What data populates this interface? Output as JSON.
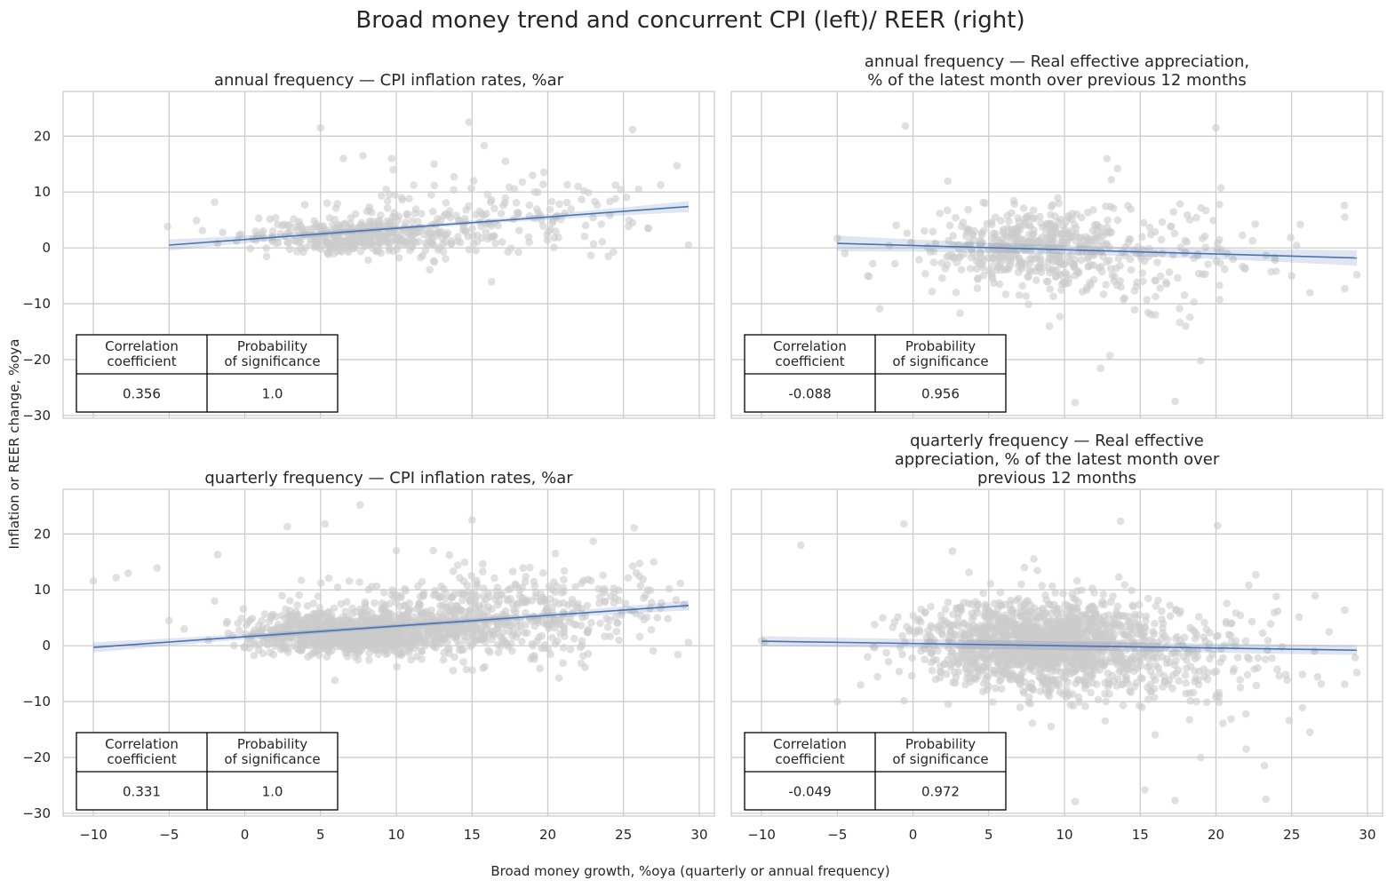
{
  "figure": {
    "title": "Broad money trend and concurrent CPI (left)/ REER (right)",
    "xlabel": "Broad money growth, %oya (quarterly or annual frequency)",
    "ylabel": "Inflation or REER change, %oya"
  },
  "chart_data": [
    {
      "type": "scatter",
      "title_lines": [
        "annual frequency — CPI inflation rates, %ar"
      ],
      "xlim": [
        -12,
        31
      ],
      "ylim": [
        -30.5,
        28
      ],
      "xticks": [
        -10,
        -5,
        0,
        5,
        10,
        15,
        20,
        25,
        30
      ],
      "yticks": [
        -30,
        -20,
        -10,
        0,
        10,
        20
      ],
      "grid": true,
      "x_tick_labels_shown": false,
      "regression": {
        "x": [
          -5,
          29.3
        ],
        "y": [
          0.5,
          7.4
        ],
        "band_width": [
          0.35,
          1.0
        ]
      },
      "scatter_color": "#cccccc",
      "line_color": "#4c72b0",
      "table_position": "lower-left",
      "table": {
        "headers": [
          [
            "Correlation",
            "coefficient"
          ],
          [
            "Probability",
            "of significance"
          ]
        ],
        "values": [
          "0.356",
          "1.0"
        ]
      },
      "point_clusters": [
        {
          "x_mean": 7,
          "x_sd": 3.2,
          "y_mean": 2.2,
          "y_sd": 1.6,
          "n": 340
        },
        {
          "x_mean": 13,
          "x_sd": 4.5,
          "y_mean": 4.5,
          "y_sd": 3.2,
          "n": 170
        },
        {
          "x_mean": 21,
          "x_sd": 4,
          "y_mean": 6,
          "y_sd": 4,
          "n": 50
        }
      ],
      "points": [
        [
          5.0,
          21.5
        ],
        [
          7.8,
          16.5
        ],
        [
          9.7,
          16
        ],
        [
          14.8,
          22.5
        ],
        [
          15.8,
          18.3
        ],
        [
          9.8,
          14
        ],
        [
          12.5,
          15
        ],
        [
          25.6,
          21.2
        ],
        [
          17.2,
          15.5
        ],
        [
          6.5,
          16
        ],
        [
          19,
          13
        ],
        [
          22,
          11
        ],
        [
          26,
          10.5
        ],
        [
          29.3,
          0.5
        ],
        [
          -5.1,
          3.8
        ],
        [
          -3.2,
          4.9
        ],
        [
          -2.8,
          3.1
        ],
        [
          -2,
          8.2
        ],
        [
          24,
          -1.5
        ],
        [
          25.6,
          4.5
        ]
      ]
    },
    {
      "type": "scatter",
      "title_lines": [
        "annual frequency — Real effective appreciation,",
        "% of the latest month over previous 12 months"
      ],
      "xlim": [
        -12,
        31
      ],
      "ylim": [
        -30.5,
        28
      ],
      "xticks": [
        -10,
        -5,
        0,
        5,
        10,
        15,
        20,
        25,
        30
      ],
      "yticks": [
        -30,
        -20,
        -10,
        0,
        10,
        20
      ],
      "grid": true,
      "x_tick_labels_shown": false,
      "y_tick_labels_shown": false,
      "regression": {
        "x": [
          -5,
          29.3
        ],
        "y": [
          0.8,
          -1.8
        ],
        "band_width": [
          0.8,
          1.4
        ]
      },
      "scatter_color": "#cccccc",
      "line_color": "#4c72b0",
      "table_position": "lower-left",
      "table": {
        "headers": [
          [
            "Correlation",
            "coefficient"
          ],
          [
            "Probability",
            "of significance"
          ]
        ],
        "values": [
          "-0.088",
          "0.956"
        ]
      },
      "point_clusters": [
        {
          "x_mean": 8,
          "x_sd": 3.5,
          "y_mean": 0,
          "y_sd": 3.6,
          "n": 420
        },
        {
          "x_mean": 14,
          "x_sd": 5.5,
          "y_mean": -1,
          "y_sd": 5,
          "n": 180
        }
      ],
      "points": [
        [
          -0.5,
          21.8
        ],
        [
          20,
          21.5
        ],
        [
          12.8,
          16
        ],
        [
          13.5,
          14.2
        ],
        [
          28.5,
          5.5
        ],
        [
          29.3,
          -4.8
        ],
        [
          28.5,
          -7.3
        ],
        [
          26.2,
          -8
        ],
        [
          13,
          -19.3
        ],
        [
          16,
          -12
        ],
        [
          19,
          -20.2
        ],
        [
          17.3,
          -27.5
        ],
        [
          10.7,
          -27.7
        ],
        [
          -5,
          1.7
        ],
        [
          -4.5,
          -1
        ],
        [
          -3,
          -5
        ],
        [
          -2.2,
          -10.9
        ],
        [
          25,
          -5
        ],
        [
          18,
          -14
        ],
        [
          9,
          -14
        ]
      ]
    },
    {
      "type": "scatter",
      "title_lines": [
        "quarterly frequency — CPI inflation rates, %ar"
      ],
      "xlim": [
        -12,
        31
      ],
      "ylim": [
        -30.5,
        28
      ],
      "xticks": [
        -10,
        -5,
        0,
        5,
        10,
        15,
        20,
        25,
        30
      ],
      "yticks": [
        -30,
        -20,
        -10,
        0,
        10,
        20
      ],
      "grid": true,
      "regression": {
        "x": [
          -10,
          29.3
        ],
        "y": [
          -0.3,
          7.2
        ],
        "band_width": [
          0.35,
          0.9
        ]
      },
      "scatter_color": "#cccccc",
      "line_color": "#4c72b0",
      "table_position": "lower-left",
      "table": {
        "headers": [
          [
            "Correlation",
            "coefficient"
          ],
          [
            "Probability",
            "of significance"
          ]
        ],
        "values": [
          "0.331",
          "1.0"
        ]
      },
      "point_clusters": [
        {
          "x_mean": 7,
          "x_sd": 3.3,
          "y_mean": 2.3,
          "y_sd": 1.8,
          "n": 950
        },
        {
          "x_mean": 13,
          "x_sd": 4.5,
          "y_mean": 4.5,
          "y_sd": 3.3,
          "n": 500
        },
        {
          "x_mean": 21,
          "x_sd": 4,
          "y_mean": 6,
          "y_sd": 4.2,
          "n": 180
        }
      ],
      "points": [
        [
          -10,
          11.6
        ],
        [
          -8.5,
          12.2
        ],
        [
          -7.7,
          13
        ],
        [
          -5.8,
          13.9
        ],
        [
          7.6,
          25.2
        ],
        [
          5.3,
          21.8
        ],
        [
          2.8,
          21.3
        ],
        [
          -1.8,
          16.3
        ],
        [
          25.7,
          21.1
        ],
        [
          15,
          22.5
        ],
        [
          29.3,
          0.6
        ],
        [
          28.6,
          -1.6
        ],
        [
          -5,
          4.5
        ],
        [
          -4,
          3
        ],
        [
          -2,
          8
        ],
        [
          10,
          17
        ],
        [
          13.5,
          16.2
        ],
        [
          20.5,
          16.5
        ],
        [
          23,
          18.7
        ],
        [
          27,
          15
        ]
      ]
    },
    {
      "type": "scatter",
      "title_lines": [
        "quarterly frequency — Real effective",
        "appreciation, % of the latest month over",
        "previous 12 months"
      ],
      "xlim": [
        -12,
        31
      ],
      "ylim": [
        -30.5,
        28
      ],
      "xticks": [
        -10,
        -5,
        0,
        5,
        10,
        15,
        20,
        25,
        30
      ],
      "yticks": [
        -30,
        -20,
        -10,
        0,
        10,
        20
      ],
      "grid": true,
      "y_tick_labels_shown": false,
      "regression": {
        "x": [
          -10,
          29.3
        ],
        "y": [
          0.8,
          -0.8
        ],
        "band_width": [
          0.8,
          0.9
        ]
      },
      "scatter_color": "#cccccc",
      "line_color": "#4c72b0",
      "table_position": "lower-left",
      "table": {
        "headers": [
          [
            "Correlation",
            "coefficient"
          ],
          [
            "Probability",
            "of significance"
          ]
        ],
        "values": [
          "-0.049",
          "0.972"
        ]
      },
      "point_clusters": [
        {
          "x_mean": 8,
          "x_sd": 3.6,
          "y_mean": 0.5,
          "y_sd": 4,
          "n": 1200
        },
        {
          "x_mean": 14,
          "x_sd": 5.5,
          "y_mean": -1,
          "y_sd": 5.5,
          "n": 500
        }
      ],
      "points": [
        [
          -10,
          0.9
        ],
        [
          -9.8,
          0.6
        ],
        [
          -7.4,
          18
        ],
        [
          -0.6,
          21.8
        ],
        [
          13.7,
          22.3
        ],
        [
          20.1,
          21.5
        ],
        [
          28.5,
          6.4
        ],
        [
          29.3,
          -4.8
        ],
        [
          28.5,
          -6.9
        ],
        [
          23.2,
          -21.5
        ],
        [
          23.3,
          -27.5
        ],
        [
          26.2,
          -15.5
        ],
        [
          15.3,
          -25.8
        ],
        [
          17.3,
          -27.7
        ],
        [
          10.7,
          -27.9
        ],
        [
          -5,
          -10
        ],
        [
          -3,
          -2
        ],
        [
          -2,
          5
        ],
        [
          22,
          -18.5
        ],
        [
          19,
          -20
        ]
      ]
    }
  ]
}
